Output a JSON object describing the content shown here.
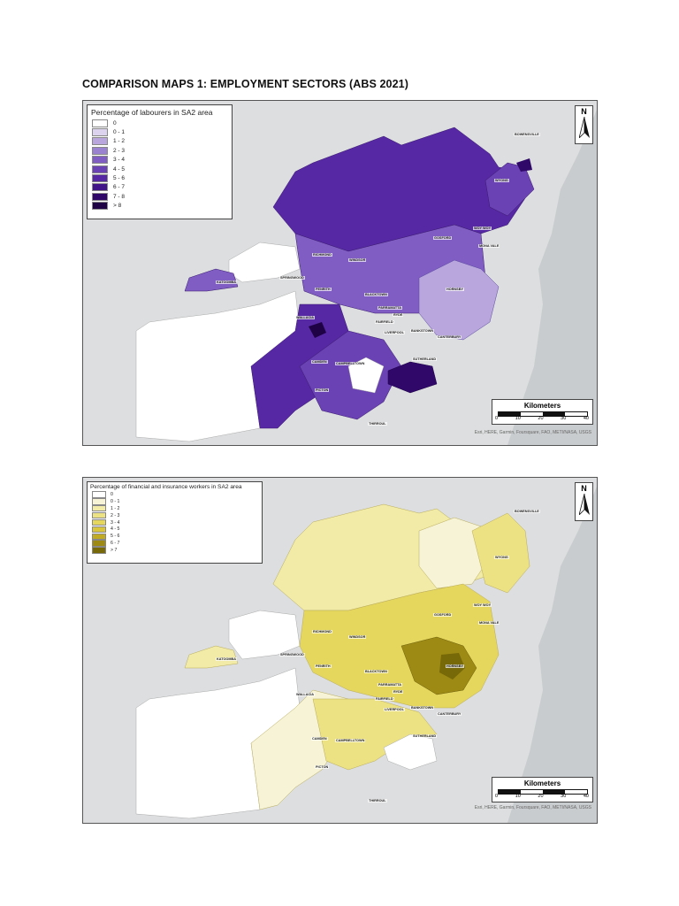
{
  "document": {
    "title": "COMPARISON MAPS 1: EMPLOYMENT SECTORS (ABS 2021)"
  },
  "maps": [
    {
      "legend_title": "Percentage of labourers in SA2 area",
      "legend": [
        {
          "label": "0",
          "color": "#ffffff"
        },
        {
          "label": "0 - 1",
          "color": "#dcd3ee"
        },
        {
          "label": "1 - 2",
          "color": "#b8a6dd"
        },
        {
          "label": "2 - 3",
          "color": "#9b82d0"
        },
        {
          "label": "3 - 4",
          "color": "#7f5dc2"
        },
        {
          "label": "4 - 5",
          "color": "#6a42b3"
        },
        {
          "label": "5 - 6",
          "color": "#5628a3"
        },
        {
          "label": "6 - 7",
          "color": "#42148a"
        },
        {
          "label": "7 - 8",
          "color": "#30086a"
        },
        {
          "label": "> 8",
          "color": "#1e0245"
        }
      ],
      "north_label": "N",
      "scale_title": "Kilometers",
      "scale_ticks": [
        "0",
        "10",
        "20",
        "30",
        "40"
      ],
      "attribution": "Esri, HERE, Garmin, Foursquare, FAO, METI/NASA, USGS",
      "places": [
        "BOWENSVILLE",
        "WYONG",
        "GOSFORD",
        "WOY WOY",
        "MONA VALE",
        "RICHMOND",
        "WINDSOR",
        "KATOOMBA",
        "SPRINGWOOD",
        "PENRITH",
        "BLACKTOWN",
        "HORNSBY",
        "PARRAMATTA",
        "RYDE",
        "LIVERPOOL",
        "FAIRFIELD",
        "BANKSTOWN",
        "WALLACIA",
        "CAMDEN",
        "CAMPBELLTOWN",
        "CANTERBURY",
        "SUTHERLAND",
        "PICTON",
        "THIRROUL"
      ]
    },
    {
      "legend_title": "Percentage of financial and insurance workers in SA2 area",
      "legend": [
        {
          "label": "0",
          "color": "#ffffff"
        },
        {
          "label": "0 - 1",
          "color": "#f6f3d6"
        },
        {
          "label": "1 - 2",
          "color": "#f1eba7"
        },
        {
          "label": "2 - 3",
          "color": "#ede283"
        },
        {
          "label": "3 - 4",
          "color": "#e5d65e"
        },
        {
          "label": "4 - 5",
          "color": "#d9c63c"
        },
        {
          "label": "5 - 6",
          "color": "#c1ab22"
        },
        {
          "label": "6 - 7",
          "color": "#9d8a14"
        },
        {
          "label": "> 7",
          "color": "#776808"
        }
      ],
      "north_label": "N",
      "scale_title": "Kilometers",
      "scale_ticks": [
        "0",
        "10",
        "20",
        "30",
        "40"
      ],
      "attribution": "Esri, HERE, Garmin, Foursquare, FAO, METI/NASA, USGS",
      "places": [
        "BOWENSVILLE",
        "WYONG",
        "GOSFORD",
        "WOY WOY",
        "MONA VALE",
        "RICHMOND",
        "WINDSOR",
        "KATOOMBA",
        "SPRINGWOOD",
        "PENRITH",
        "BLACKTOWN",
        "HORNSBY",
        "PARRAMATTA",
        "RYDE",
        "LIVERPOOL",
        "FAIRFIELD",
        "BANKSTOWN",
        "WALLACIA",
        "CAMDEN",
        "CAMPBELLTOWN",
        "CANTERBURY",
        "SUTHERLAND",
        "PICTON",
        "THIRROUL"
      ]
    }
  ]
}
